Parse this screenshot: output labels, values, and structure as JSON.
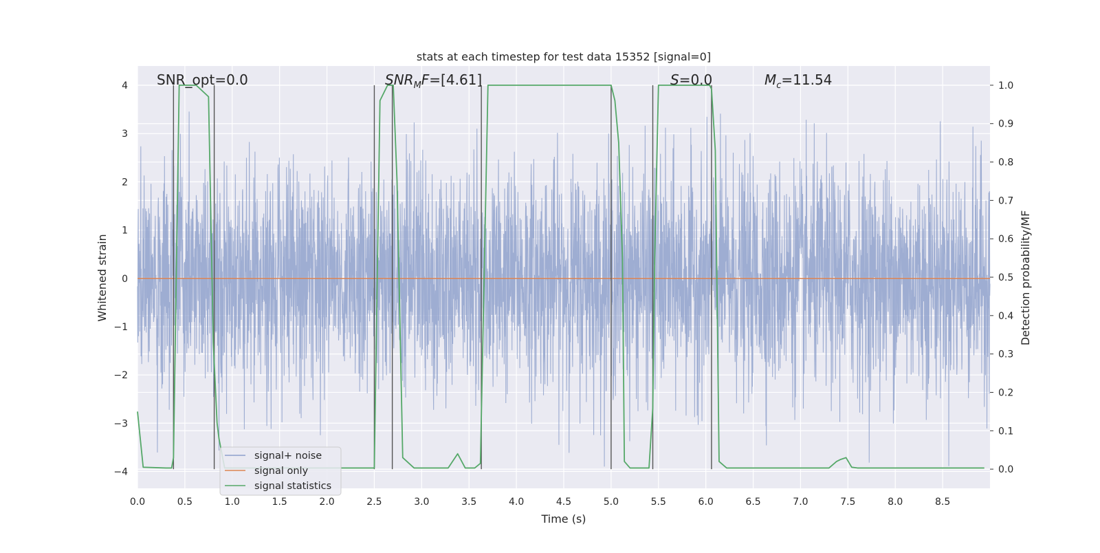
{
  "chart_data": {
    "type": "line",
    "title": "stats at each timestep for test data 15352 [signal=0]",
    "xlabel": "Time (s)",
    "ylabel": "Whitened strain",
    "ylabel_right": "Detection probability/MF",
    "xlim": [
      0.0,
      9.0
    ],
    "ylim": [
      -4.35,
      4.4
    ],
    "ylim_right": [
      -0.05,
      1.05
    ],
    "x_ticks": [
      "0.0",
      "0.5",
      "1.0",
      "1.5",
      "2.0",
      "2.5",
      "3.0",
      "3.5",
      "4.0",
      "4.5",
      "5.0",
      "5.5",
      "6.0",
      "6.5",
      "7.0",
      "7.5",
      "8.0",
      "8.5"
    ],
    "y_ticks": [
      "4",
      "3",
      "2",
      "1",
      "0",
      "−1",
      "−2",
      "−3",
      "−4"
    ],
    "y_right_ticks": [
      "1.0",
      "0.9",
      "0.8",
      "0.7",
      "0.6",
      "0.5",
      "0.4",
      "0.3",
      "0.2",
      "0.1",
      "0.0"
    ],
    "grid": true,
    "legend_position": "lower-left",
    "annotations": [
      {
        "label": "SNR_opt",
        "value": "=0.0",
        "italic": false
      },
      {
        "label": "SNR",
        "sub": "M",
        "label2": "F",
        "value": "=[4.61]",
        "italic": true
      },
      {
        "label": "S",
        "value": "=0.0",
        "italic": true
      },
      {
        "label": "M",
        "sub": "c",
        "value": "=11.54",
        "italic": true
      }
    ],
    "series": [
      {
        "name": "signal+ noise",
        "color": "#8da0cb",
        "kind": "noise",
        "amplitude_envelope": 3.9,
        "duration_s": 9.0
      },
      {
        "name": "signal only",
        "color": "#dd8452",
        "values_constant": 0.0
      },
      {
        "name": "signal statistics",
        "color": "#55a868",
        "axis": "right",
        "x": [
          0.0,
          0.06,
          0.3,
          0.36,
          0.38,
          0.44,
          0.62,
          0.75,
          0.8,
          0.84,
          0.86,
          0.92,
          2.36,
          2.5,
          2.56,
          2.64,
          2.7,
          2.74,
          2.8,
          2.92,
          3.28,
          3.38,
          3.46,
          3.56,
          3.62,
          3.64,
          3.7,
          5.0,
          5.04,
          5.08,
          5.12,
          5.14,
          5.2,
          5.4,
          5.44,
          5.46,
          5.5,
          6.04,
          6.06,
          6.1,
          6.14,
          6.22,
          6.5,
          7.0,
          7.3,
          7.38,
          7.42,
          7.48,
          7.54,
          7.6,
          8.5,
          8.94
        ],
        "y": [
          0.15,
          0.005,
          0.003,
          0.003,
          0.03,
          1.0,
          1.0,
          0.97,
          0.33,
          0.12,
          0.08,
          0.003,
          0.003,
          0.003,
          0.96,
          1.0,
          1.0,
          0.75,
          0.03,
          0.003,
          0.003,
          0.04,
          0.003,
          0.003,
          0.015,
          0.26,
          1.0,
          1.0,
          0.96,
          0.85,
          0.55,
          0.02,
          0.003,
          0.003,
          0.16,
          0.55,
          1.0,
          1.0,
          0.99,
          0.83,
          0.02,
          0.003,
          0.003,
          0.003,
          0.003,
          0.02,
          0.025,
          0.03,
          0.005,
          0.003,
          0.003,
          0.003
        ]
      }
    ],
    "vertical_lines_x": [
      0.38,
      0.81,
      2.5,
      2.69,
      3.63,
      5.0,
      5.44,
      6.06
    ]
  }
}
